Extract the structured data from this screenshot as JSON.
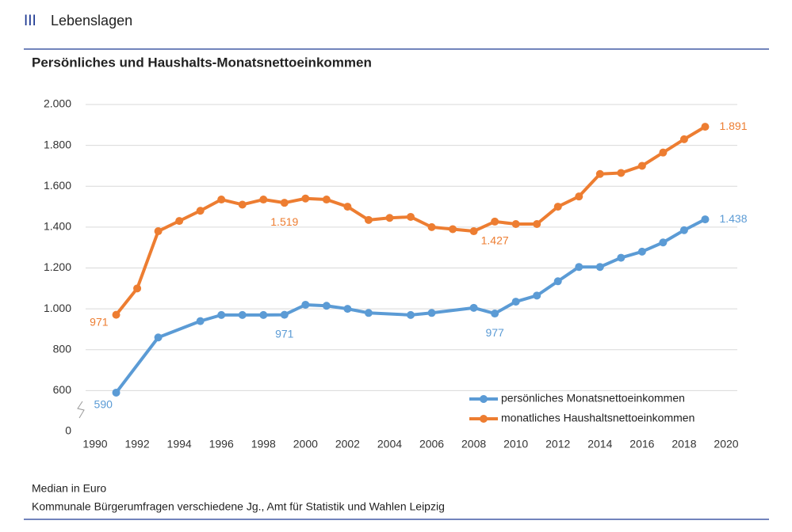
{
  "header": {
    "section": "III",
    "title": "Lebenslagen"
  },
  "chart_data": {
    "type": "line",
    "title": "Persönliches und Haushalts-Monatsnettoeinkommen",
    "xlim": [
      1990,
      2020
    ],
    "xticks": [
      1990,
      1992,
      1994,
      1996,
      1998,
      2000,
      2002,
      2004,
      2006,
      2008,
      2010,
      2012,
      2014,
      2016,
      2018,
      2020
    ],
    "ylim": [
      0,
      2000
    ],
    "axis_break": [
      0,
      400
    ],
    "yticks": [
      0,
      600,
      800,
      {
        "value": 1000,
        "label": "1.000"
      },
      {
        "value": 1200,
        "label": "1.200"
      },
      {
        "value": 1400,
        "label": "1.400"
      },
      {
        "value": 1600,
        "label": "1.600"
      },
      {
        "value": 1800,
        "label": "1.800"
      },
      {
        "value": 2000,
        "label": "2.000"
      }
    ],
    "grid": true,
    "legend": "lower right",
    "series": [
      {
        "name": "persönliches Monatsnettoeinkommen",
        "color": "#5b9bd5",
        "x": [
          1991,
          1993,
          1995,
          1996,
          1997,
          1998,
          1999,
          2000,
          2001,
          2002,
          2003,
          2005,
          2006,
          2008,
          2009,
          2010,
          2011,
          2012,
          2013,
          2014,
          2015,
          2016,
          2017,
          2018,
          2019
        ],
        "values": [
          590,
          860,
          940,
          970,
          970,
          970,
          971,
          1020,
          1015,
          1000,
          980,
          970,
          980,
          1005,
          977,
          1035,
          1065,
          1135,
          1205,
          1205,
          1250,
          1280,
          1325,
          1385,
          1438
        ],
        "value_labels": [
          "590",
          null,
          null,
          null,
          null,
          null,
          "971",
          null,
          null,
          null,
          null,
          null,
          null,
          null,
          "977",
          null,
          null,
          null,
          null,
          null,
          null,
          null,
          null,
          null,
          "1.438"
        ]
      },
      {
        "name": "monatliches Haushaltsnettoeinkommen",
        "color": "#ed7d31",
        "x": [
          1991,
          1992,
          1993,
          1994,
          1995,
          1996,
          1997,
          1998,
          1999,
          2000,
          2001,
          2002,
          2003,
          2004,
          2005,
          2006,
          2007,
          2008,
          2009,
          2010,
          2011,
          2012,
          2013,
          2014,
          2015,
          2016,
          2017,
          2018,
          2019
        ],
        "values": [
          971,
          1100,
          1380,
          1430,
          1480,
          1535,
          1510,
          1535,
          1519,
          1540,
          1535,
          1500,
          1435,
          1445,
          1450,
          1400,
          1390,
          1380,
          1427,
          1415,
          1415,
          1500,
          1550,
          1660,
          1665,
          1700,
          1765,
          1830,
          1891
        ],
        "value_labels": [
          "971",
          null,
          null,
          null,
          null,
          null,
          null,
          null,
          "1.519",
          null,
          null,
          null,
          null,
          null,
          null,
          null,
          null,
          null,
          "1.427",
          null,
          null,
          null,
          null,
          null,
          null,
          null,
          null,
          null,
          "1.891"
        ]
      }
    ]
  },
  "footer": {
    "note": "Median in Euro",
    "source": "Kommunale Bürgerumfragen verschiedene Jg., Amt für Statistik und Wahlen Leipzig"
  }
}
